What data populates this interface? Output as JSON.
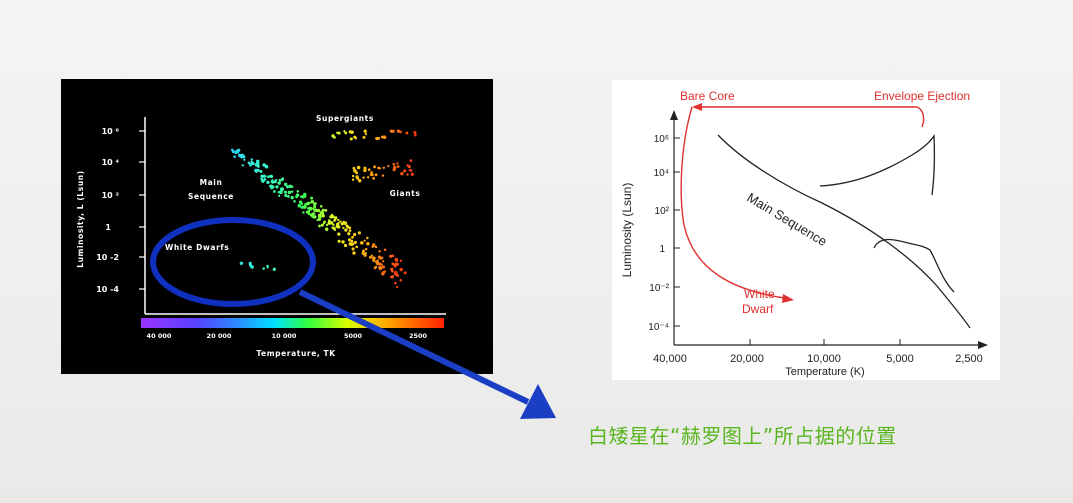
{
  "left_diagram": {
    "y_axis_label": "Luminosity, L (Lsun)",
    "y_ticks": [
      "10 ⁶",
      "10 ⁴",
      "10 ²",
      "1",
      "10 -2",
      "10 -4"
    ],
    "x_ticks": [
      "40 000",
      "20 000",
      "10 000",
      "5000",
      "2500"
    ],
    "x_axis_label": "Temperature, TK",
    "region_labels": {
      "supergiants": "Supergiants",
      "main_sequence_line1": "Main",
      "main_sequence_line2": "Sequence",
      "giants": "Giants",
      "white_dwarfs": "White Dwarfs"
    },
    "highlight_color": "#1030c0"
  },
  "right_diagram": {
    "y_axis_label": "Luminosity (Lsun)",
    "y_ticks": [
      "10⁶",
      "10⁴",
      "10²",
      "1",
      "10⁻²",
      "10⁻⁴"
    ],
    "x_ticks": [
      "40,000",
      "20,000",
      "10,000",
      "5,000",
      "2,500"
    ],
    "x_axis_label": "Temperature (K)",
    "annotations": {
      "bare_core": "Bare Core",
      "envelope_ejection": "Envelope Ejection",
      "main_sequence": "Main Sequence",
      "white_dwarf_line1": "White",
      "white_dwarf_line2": "Dwarf"
    },
    "track_color": "#e03030"
  },
  "caption": "白矮星在“赫罗图上”所占据的位置",
  "colors": {
    "caption": "#59b61f",
    "arrow": "#1a3fc4"
  }
}
